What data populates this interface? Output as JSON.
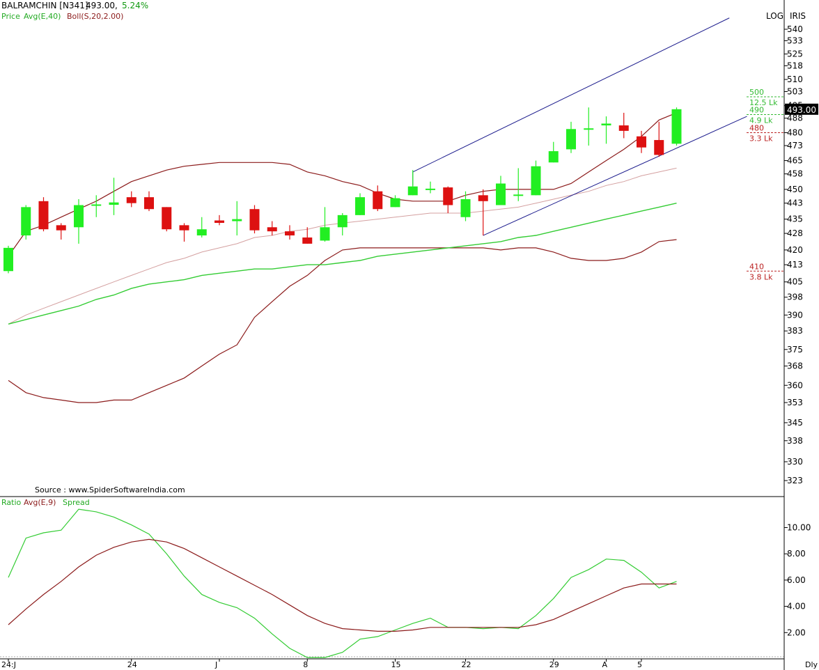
{
  "header": {
    "symbol": "BALRAMCHIN [N341]",
    "price": "493.00,",
    "change": "5.24%",
    "legend_price": "Price",
    "legend_avg": "Avg(E,40)",
    "legend_boll": "Boll(S,20,2.00)",
    "scale_mode": "LOG",
    "brand": "IRIS",
    "source": "Source : www.SpiderSoftwareIndia.com"
  },
  "lower_panel": {
    "legend_ratio": "Ratio",
    "legend_avg": "Avg(E,9)",
    "legend_spread": "Spread",
    "periodicity": "Dly"
  },
  "colors": {
    "up": "#22ee22",
    "down": "#dd1111",
    "boll": "#8b1a1a",
    "ema40": "#33cc33",
    "mid": "#d4a0a0",
    "channel": "#1a1a8c",
    "axis": "#000000",
    "volume_profile_green": "#33bb33",
    "volume_profile_red": "#bb2222"
  },
  "chart_data": {
    "type": "candlestick",
    "scale": "log",
    "y_ticks": [
      "540",
      "533",
      "525",
      "518",
      "510",
      "503",
      "495",
      "488",
      "480",
      "473",
      "465",
      "458",
      "450",
      "443",
      "435",
      "428",
      "420",
      "413",
      "405",
      "398",
      "390",
      "383",
      "375",
      "368",
      "360",
      "353",
      "345",
      "338",
      "330",
      "323"
    ],
    "x_labels": [
      "24:J",
      "24",
      "J",
      "8",
      "15",
      "22",
      "29",
      "A",
      "5"
    ],
    "x_label_index": [
      0,
      7,
      12,
      17,
      22,
      26,
      31,
      34,
      36
    ],
    "last_price": "493.00",
    "candles": [
      {
        "o": 410.0,
        "h": 422.0,
        "l": 409.0,
        "c": 421.0
      },
      {
        "o": 427.0,
        "h": 442.0,
        "l": 425.0,
        "c": 441.0
      },
      {
        "o": 444.0,
        "h": 446.0,
        "l": 429.0,
        "c": 430.0
      },
      {
        "o": 432.0,
        "h": 433.0,
        "l": 425.0,
        "c": 429.5
      },
      {
        "o": 431.0,
        "h": 445.0,
        "l": 423.0,
        "c": 442.0
      },
      {
        "o": 442.0,
        "h": 447.0,
        "l": 436.0,
        "c": 442.0
      },
      {
        "o": 442.5,
        "h": 456.0,
        "l": 437.0,
        "c": 443.0
      },
      {
        "o": 446.0,
        "h": 449.0,
        "l": 441.0,
        "c": 443.0
      },
      {
        "o": 446.0,
        "h": 449.0,
        "l": 439.0,
        "c": 440.0
      },
      {
        "o": 441.0,
        "h": 441.0,
        "l": 429.0,
        "c": 430.0
      },
      {
        "o": 432.0,
        "h": 433.0,
        "l": 424.0,
        "c": 429.5
      },
      {
        "o": 427.0,
        "h": 436.0,
        "l": 426.0,
        "c": 430.0
      },
      {
        "o": 434.0,
        "h": 437.0,
        "l": 432.0,
        "c": 433.5
      },
      {
        "o": 434.0,
        "h": 444.0,
        "l": 427.0,
        "c": 435.0
      },
      {
        "o": 440.0,
        "h": 442.0,
        "l": 428.0,
        "c": 429.5
      },
      {
        "o": 431.0,
        "h": 434.0,
        "l": 427.0,
        "c": 429.0
      },
      {
        "o": 429.0,
        "h": 432.0,
        "l": 425.0,
        "c": 427.0
      },
      {
        "o": 426.0,
        "h": 431.0,
        "l": 423.0,
        "c": 423.0
      },
      {
        "o": 424.5,
        "h": 441.0,
        "l": 424.0,
        "c": 431.0
      },
      {
        "o": 431.0,
        "h": 438.0,
        "l": 427.0,
        "c": 437.0
      },
      {
        "o": 437.0,
        "h": 448.0,
        "l": 437.0,
        "c": 446.0
      },
      {
        "o": 449.0,
        "h": 452.0,
        "l": 439.0,
        "c": 440.0
      },
      {
        "o": 441.0,
        "h": 447.0,
        "l": 441.0,
        "c": 445.5
      },
      {
        "o": 447.0,
        "h": 460.0,
        "l": 447.0,
        "c": 451.5
      },
      {
        "o": 450.0,
        "h": 454.0,
        "l": 448.0,
        "c": 450.0
      },
      {
        "o": 451.0,
        "h": 451.5,
        "l": 438.0,
        "c": 442.0
      },
      {
        "o": 436.0,
        "h": 449.0,
        "l": 434.0,
        "c": 445.0
      },
      {
        "o": 447.0,
        "h": 450.0,
        "l": 427.0,
        "c": 444.0
      },
      {
        "o": 442.0,
        "h": 457.0,
        "l": 442.0,
        "c": 453.0
      },
      {
        "o": 447.0,
        "h": 461.0,
        "l": 444.0,
        "c": 447.0
      },
      {
        "o": 447.0,
        "h": 465.0,
        "l": 447.0,
        "c": 462.0
      },
      {
        "o": 464.0,
        "h": 475.0,
        "l": 464.0,
        "c": 470.0
      },
      {
        "o": 471.0,
        "h": 486.0,
        "l": 469.0,
        "c": 482.0
      },
      {
        "o": 482.0,
        "h": 494.0,
        "l": 473.0,
        "c": 482.0
      },
      {
        "o": 484.0,
        "h": 489.0,
        "l": 474.0,
        "c": 485.0
      },
      {
        "o": 484.0,
        "h": 491.0,
        "l": 477.0,
        "c": 481.0
      },
      {
        "o": 478.0,
        "h": 481.0,
        "l": 469.0,
        "c": 472.0
      },
      {
        "o": 476.0,
        "h": 486.0,
        "l": 467.0,
        "c": 468.0
      },
      {
        "o": 474.0,
        "h": 494.0,
        "l": 473.0,
        "c": 493.0
      }
    ],
    "boll_upper": [
      417,
      429,
      432,
      436,
      440,
      444,
      449,
      454,
      457,
      460,
      462,
      463,
      464,
      464,
      464,
      464,
      463,
      459,
      457,
      454,
      452,
      448,
      445,
      444,
      444,
      444,
      447,
      449,
      450,
      450,
      450,
      450,
      453,
      459,
      465,
      471,
      478,
      487,
      491
    ],
    "boll_lower": [
      362,
      357,
      355,
      354,
      353,
      353,
      354,
      354,
      357,
      360,
      363,
      368,
      373,
      377,
      389,
      396,
      403,
      408,
      415,
      420,
      421,
      421,
      421,
      421,
      421,
      421,
      421,
      421,
      420,
      421,
      421,
      419,
      416,
      415,
      415,
      416,
      419,
      424,
      425
    ],
    "boll_mid": [
      386,
      390,
      393,
      396,
      399,
      402,
      405,
      408,
      411,
      414,
      416,
      419,
      421,
      423,
      426,
      427,
      429,
      430,
      432,
      433,
      434,
      435,
      436,
      437,
      438,
      438,
      438,
      439,
      440,
      441,
      443,
      445,
      447,
      449,
      452,
      454,
      457,
      459,
      461
    ],
    "ema40": [
      386,
      388,
      390,
      392,
      394,
      397,
      399,
      402,
      404,
      405,
      406,
      408,
      409,
      410,
      411,
      411,
      412,
      413,
      413,
      414,
      415,
      417,
      418,
      419,
      420,
      421,
      422,
      423,
      424,
      426,
      427,
      429,
      431,
      433,
      435,
      437,
      439,
      441,
      443
    ],
    "channel": {
      "upper": [
        {
          "i": 23,
          "v": 459
        },
        {
          "i": 41,
          "v": 547
        }
      ],
      "lower": [
        {
          "i": 27,
          "v": 427
        },
        {
          "i": 42,
          "v": 489
        }
      ]
    },
    "volume_profile": [
      {
        "price": "500",
        "volume": "12.5 Lk",
        "color": "green"
      },
      {
        "price": "490",
        "volume": "4.9 Lk",
        "color": "green"
      },
      {
        "price": "480",
        "volume": "3.3 Lk",
        "color": "red"
      },
      {
        "price": "410",
        "volume": "3.8 Lk",
        "color": "red"
      }
    ],
    "ratio": {
      "y_ticks": [
        "10.00",
        "8.00",
        "6.00",
        "4.00",
        "2.00"
      ],
      "ylim": [
        0,
        12.2
      ],
      "spread": [
        6.2,
        9.2,
        9.6,
        9.8,
        11.4,
        11.2,
        10.8,
        10.2,
        9.5,
        8.0,
        6.3,
        4.9,
        4.3,
        3.9,
        3.1,
        1.9,
        0.8,
        0.1,
        0.1,
        0.5,
        1.5,
        1.7,
        2.2,
        2.7,
        3.1,
        2.4,
        2.4,
        2.3,
        2.4,
        2.3,
        3.3,
        4.6,
        6.2,
        6.8,
        7.6,
        7.5,
        6.6,
        5.4,
        5.9
      ],
      "avg": [
        2.6,
        3.8,
        4.9,
        5.9,
        7.0,
        7.9,
        8.5,
        8.9,
        9.1,
        8.9,
        8.4,
        7.7,
        7.0,
        6.3,
        5.6,
        4.9,
        4.1,
        3.3,
        2.7,
        2.3,
        2.2,
        2.1,
        2.1,
        2.2,
        2.4,
        2.4,
        2.4,
        2.4,
        2.4,
        2.4,
        2.6,
        3.0,
        3.6,
        4.2,
        4.8,
        5.4,
        5.7,
        5.7,
        5.7
      ]
    }
  }
}
